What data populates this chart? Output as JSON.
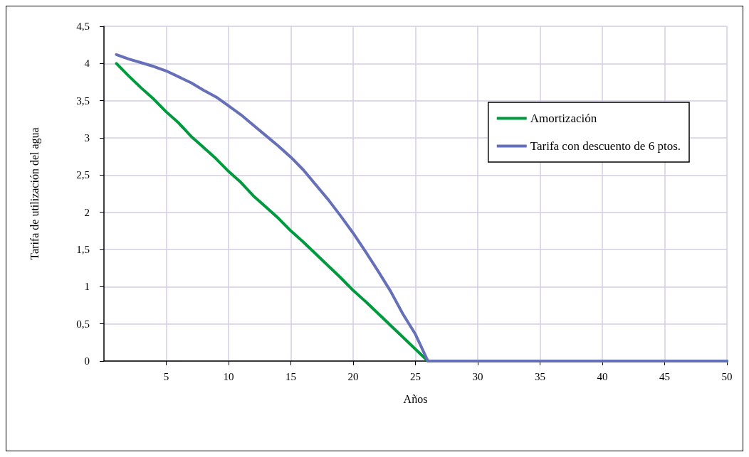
{
  "chart_data": {
    "type": "line",
    "xlabel": "Años",
    "ylabel": "Tarifa de utilización del agua",
    "x": [
      1,
      2,
      3,
      4,
      5,
      6,
      7,
      8,
      9,
      10,
      11,
      12,
      13,
      14,
      15,
      16,
      17,
      18,
      19,
      20,
      21,
      22,
      23,
      24,
      25,
      26,
      50
    ],
    "series": [
      {
        "name": "Amortización",
        "color": "#009a3e",
        "values": [
          4.0,
          3.83,
          3.67,
          3.52,
          3.35,
          3.2,
          3.02,
          2.87,
          2.72,
          2.55,
          2.4,
          2.22,
          2.07,
          1.92,
          1.75,
          1.6,
          1.44,
          1.28,
          1.12,
          0.95,
          0.8,
          0.64,
          0.48,
          0.32,
          0.16,
          0,
          0
        ]
      },
      {
        "name": "Tarifa con descuento de 6 ptos.",
        "color": "#6670b8",
        "values": [
          4.12,
          4.06,
          4.01,
          3.96,
          3.9,
          3.82,
          3.74,
          3.64,
          3.55,
          3.43,
          3.31,
          3.17,
          3.03,
          2.89,
          2.74,
          2.57,
          2.37,
          2.17,
          1.95,
          1.72,
          1.47,
          1.21,
          0.94,
          0.63,
          0.36,
          0,
          0
        ]
      }
    ],
    "xlim": [
      0,
      50
    ],
    "xticks": [
      5,
      10,
      15,
      20,
      25,
      30,
      35,
      40,
      45,
      50
    ],
    "ylim": [
      0,
      4.5
    ],
    "yticks": [
      0,
      {
        "value": 0.5,
        "label": "0,5"
      },
      1,
      {
        "value": 1.5,
        "label": "1,5"
      },
      2,
      {
        "value": 2.5,
        "label": "2,5"
      },
      3,
      {
        "value": 3.5,
        "label": "3,5"
      },
      4,
      {
        "value": 4.5,
        "label": "4,5"
      }
    ],
    "grid": true,
    "legend": "top right",
    "marker": "none",
    "line_style": "solid"
  }
}
